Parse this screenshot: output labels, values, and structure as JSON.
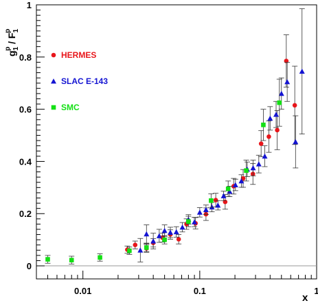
{
  "chart_data": {
    "type": "scatter",
    "title": "",
    "xlabel": "x",
    "ylabel": {
      "g": "g",
      "g_sub": "1",
      "g_sup": "p",
      "sep": " / ",
      "f": "F",
      "f_sub": "1",
      "f_sup": "p"
    },
    "xscale": "log",
    "xlim": [
      0.004,
      1
    ],
    "ylim": [
      -0.05,
      1
    ],
    "x_tick_labels": [
      {
        "value": 0.01,
        "label": "0.01"
      },
      {
        "value": 0.1,
        "label": "0.1"
      },
      {
        "value": 1,
        "label": "1"
      }
    ],
    "y_tick_labels": [
      {
        "value": 0,
        "label": "0"
      },
      {
        "value": 0.2,
        "label": "0.2"
      },
      {
        "value": 0.4,
        "label": "0.4"
      },
      {
        "value": 0.6,
        "label": "0.6"
      },
      {
        "value": 0.8,
        "label": "0.8"
      },
      {
        "value": 1,
        "label": "1"
      }
    ],
    "zero_line": 0,
    "grid": false,
    "legend_position": "top-left",
    "series": [
      {
        "name": "HERMES",
        "color": "#e8161b",
        "marker": "circle",
        "points": [
          {
            "x": 0.024,
            "y": 0.062,
            "err": 0.014
          },
          {
            "x": 0.028,
            "y": 0.08,
            "err": 0.015
          },
          {
            "x": 0.035,
            "y": 0.067,
            "err": 0.015
          },
          {
            "x": 0.04,
            "y": 0.088,
            "err": 0.016
          },
          {
            "x": 0.048,
            "y": 0.108,
            "err": 0.017
          },
          {
            "x": 0.056,
            "y": 0.12,
            "err": 0.018
          },
          {
            "x": 0.066,
            "y": 0.102,
            "err": 0.018
          },
          {
            "x": 0.077,
            "y": 0.16,
            "err": 0.02
          },
          {
            "x": 0.092,
            "y": 0.163,
            "err": 0.022
          },
          {
            "x": 0.113,
            "y": 0.198,
            "err": 0.024
          },
          {
            "x": 0.137,
            "y": 0.252,
            "err": 0.026
          },
          {
            "x": 0.165,
            "y": 0.245,
            "err": 0.028
          },
          {
            "x": 0.195,
            "y": 0.305,
            "err": 0.03
          },
          {
            "x": 0.235,
            "y": 0.335,
            "err": 0.034
          },
          {
            "x": 0.285,
            "y": 0.352,
            "err": 0.04
          },
          {
            "x": 0.335,
            "y": 0.468,
            "err": 0.05
          },
          {
            "x": 0.39,
            "y": 0.495,
            "err": 0.06
          },
          {
            "x": 0.46,
            "y": 0.52,
            "err": 0.075
          },
          {
            "x": 0.55,
            "y": 0.785,
            "err": 0.1
          },
          {
            "x": 0.65,
            "y": 0.615,
            "err": 0.15
          }
        ]
      },
      {
        "name": "SLAC E-143",
        "color": "#1414d2",
        "marker": "triangle",
        "points": [
          {
            "x": 0.031,
            "y": 0.06,
            "err": 0.045
          },
          {
            "x": 0.035,
            "y": 0.122,
            "err": 0.035
          },
          {
            "x": 0.04,
            "y": 0.095,
            "err": 0.03
          },
          {
            "x": 0.045,
            "y": 0.115,
            "err": 0.025
          },
          {
            "x": 0.05,
            "y": 0.135,
            "err": 0.022
          },
          {
            "x": 0.056,
            "y": 0.128,
            "err": 0.02
          },
          {
            "x": 0.063,
            "y": 0.13,
            "err": 0.02
          },
          {
            "x": 0.071,
            "y": 0.148,
            "err": 0.018
          },
          {
            "x": 0.08,
            "y": 0.178,
            "err": 0.018
          },
          {
            "x": 0.09,
            "y": 0.168,
            "err": 0.018
          },
          {
            "x": 0.1,
            "y": 0.205,
            "err": 0.018
          },
          {
            "x": 0.113,
            "y": 0.215,
            "err": 0.018
          },
          {
            "x": 0.127,
            "y": 0.225,
            "err": 0.018
          },
          {
            "x": 0.143,
            "y": 0.232,
            "err": 0.018
          },
          {
            "x": 0.16,
            "y": 0.268,
            "err": 0.018
          },
          {
            "x": 0.18,
            "y": 0.285,
            "err": 0.02
          },
          {
            "x": 0.202,
            "y": 0.31,
            "err": 0.022
          },
          {
            "x": 0.227,
            "y": 0.325,
            "err": 0.024
          },
          {
            "x": 0.255,
            "y": 0.37,
            "err": 0.028
          },
          {
            "x": 0.286,
            "y": 0.375,
            "err": 0.03
          },
          {
            "x": 0.32,
            "y": 0.39,
            "err": 0.034
          },
          {
            "x": 0.36,
            "y": 0.42,
            "err": 0.04
          },
          {
            "x": 0.4,
            "y": 0.565,
            "err": 0.045
          },
          {
            "x": 0.45,
            "y": 0.58,
            "err": 0.05
          },
          {
            "x": 0.5,
            "y": 0.66,
            "err": 0.06
          },
          {
            "x": 0.56,
            "y": 0.705,
            "err": 0.075
          },
          {
            "x": 0.66,
            "y": 0.475,
            "err": 0.1
          },
          {
            "x": 0.75,
            "y": 0.745,
            "err": 0.24
          }
        ]
      },
      {
        "name": "SMC",
        "color": "#13e014",
        "marker": "square",
        "points": [
          {
            "x": 0.005,
            "y": 0.025,
            "err": 0.015
          },
          {
            "x": 0.008,
            "y": 0.022,
            "err": 0.015
          },
          {
            "x": 0.014,
            "y": 0.032,
            "err": 0.014
          },
          {
            "x": 0.025,
            "y": 0.058,
            "err": 0.014
          },
          {
            "x": 0.035,
            "y": 0.07,
            "err": 0.015
          },
          {
            "x": 0.05,
            "y": 0.1,
            "err": 0.016
          },
          {
            "x": 0.08,
            "y": 0.17,
            "err": 0.02
          },
          {
            "x": 0.125,
            "y": 0.25,
            "err": 0.026
          },
          {
            "x": 0.175,
            "y": 0.295,
            "err": 0.03
          },
          {
            "x": 0.25,
            "y": 0.365,
            "err": 0.04
          },
          {
            "x": 0.35,
            "y": 0.54,
            "err": 0.06
          },
          {
            "x": 0.48,
            "y": 0.625,
            "err": 0.09
          }
        ]
      }
    ]
  }
}
